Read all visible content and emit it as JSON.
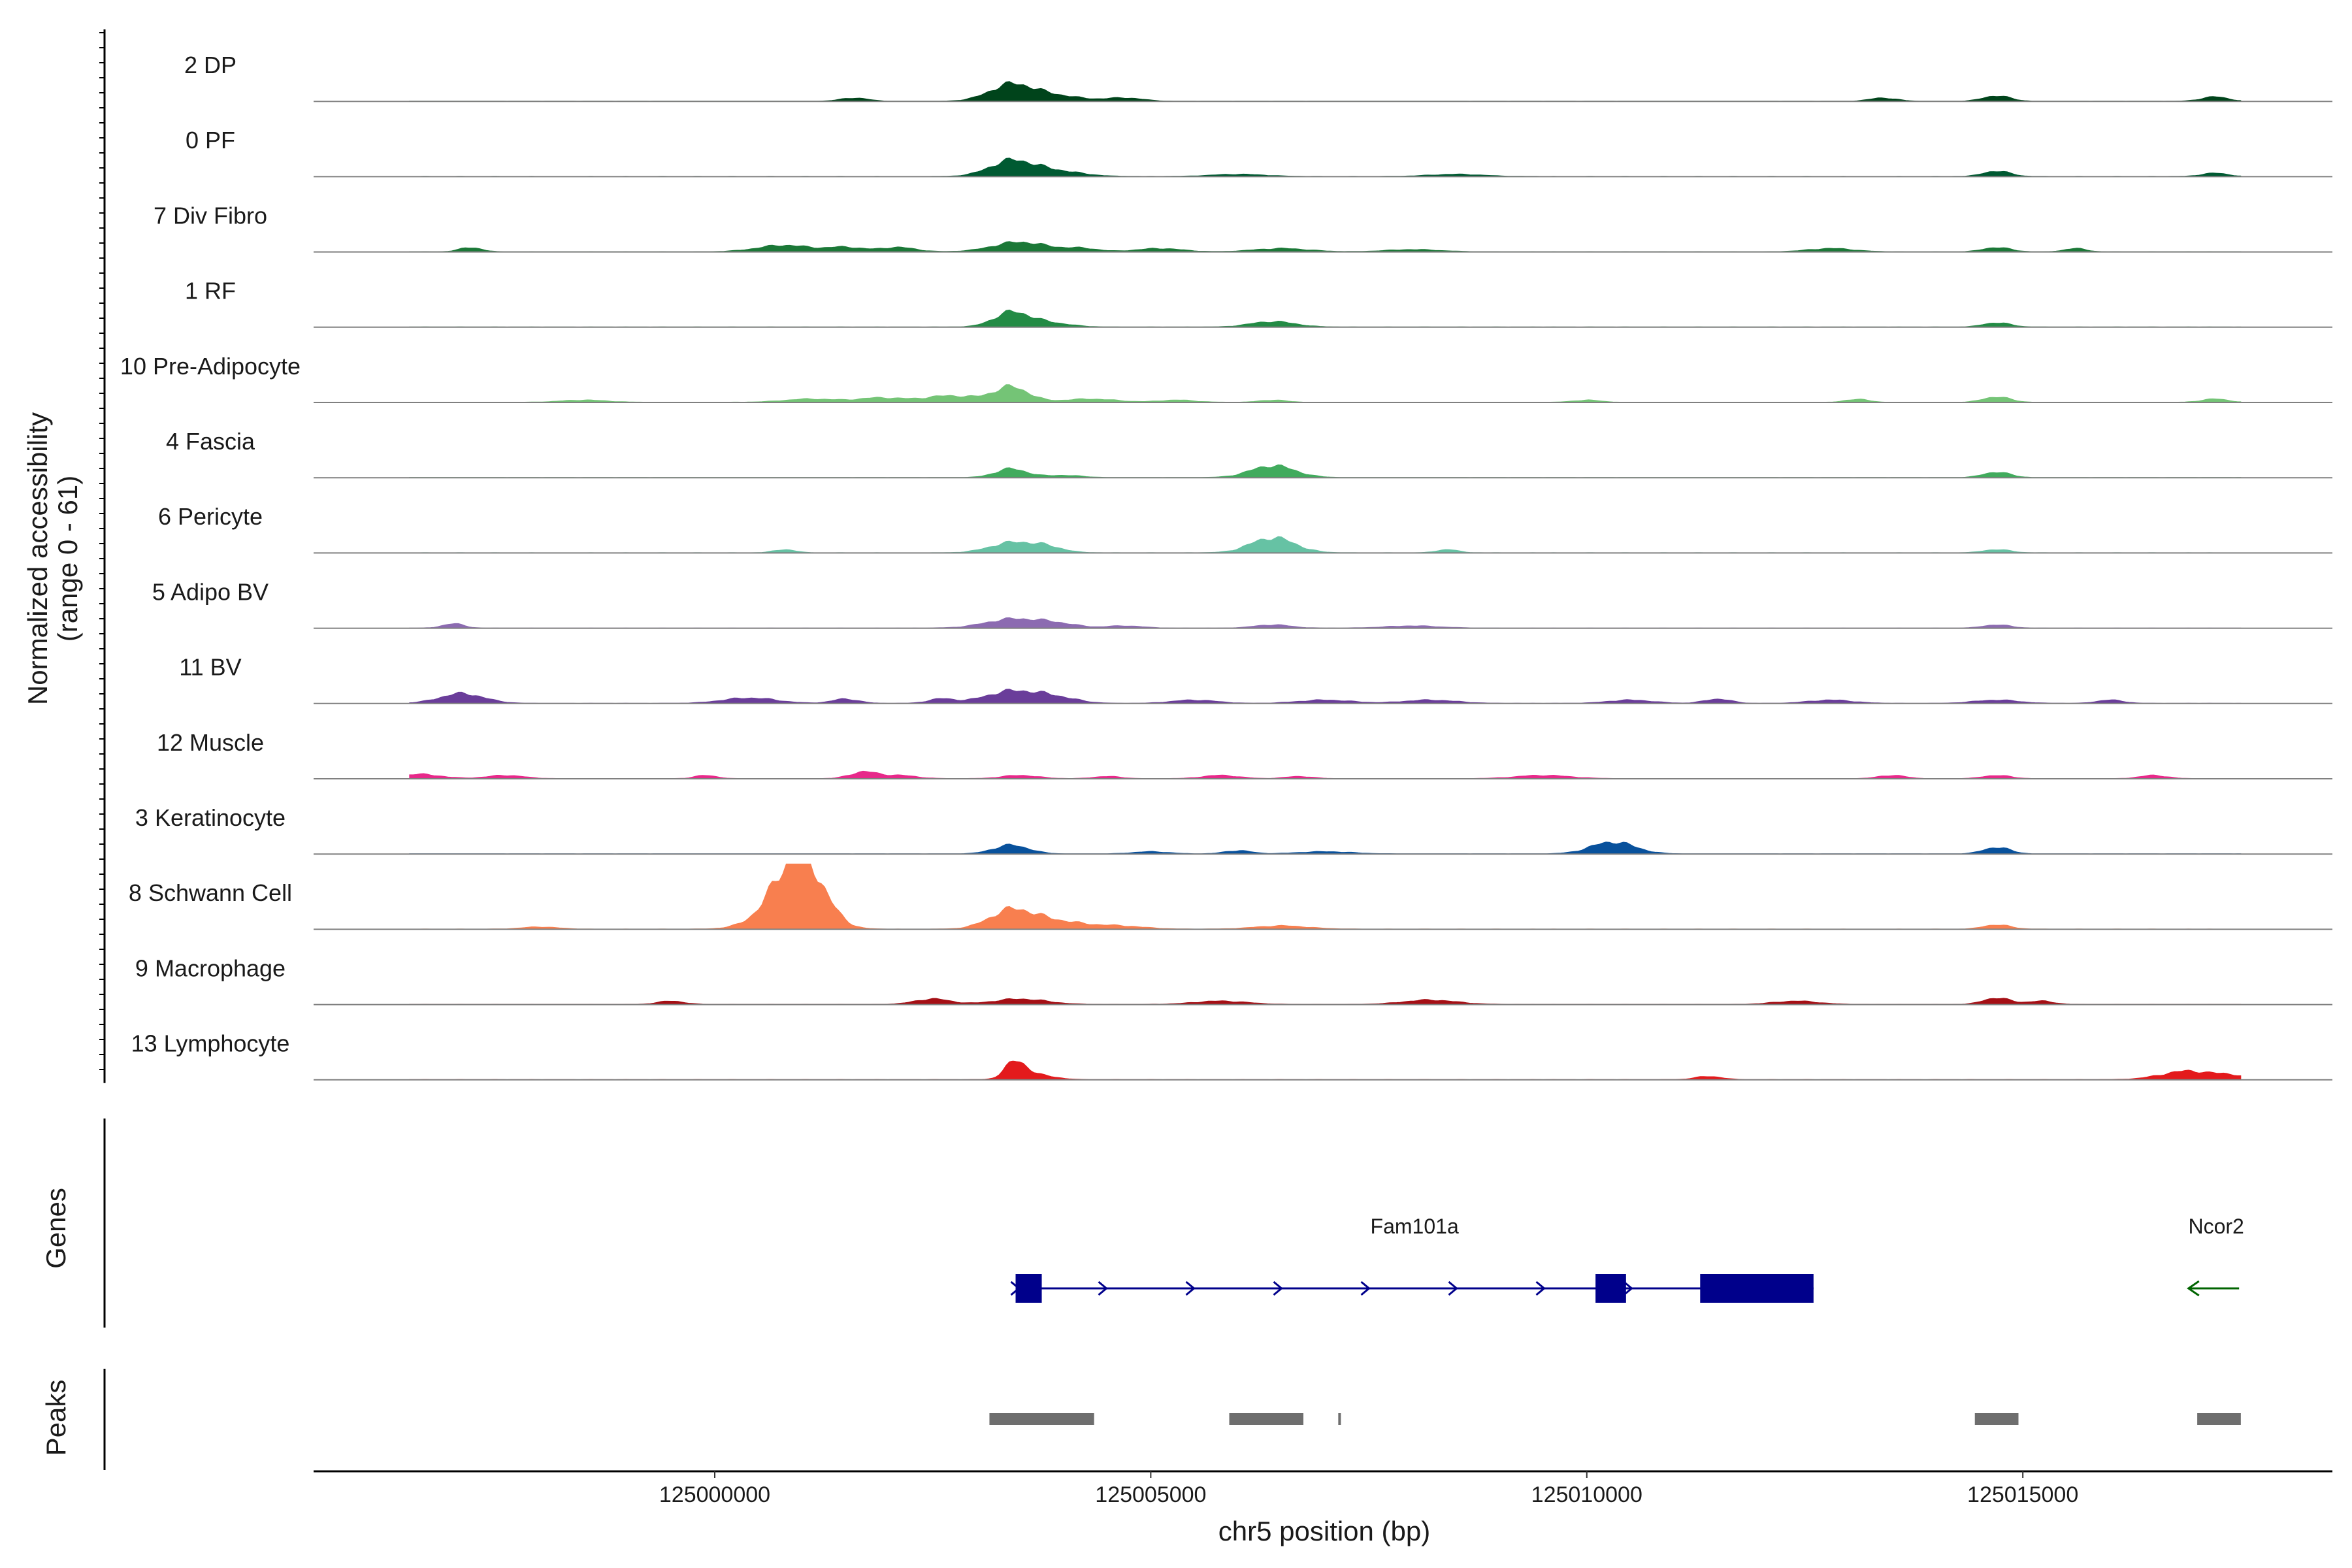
{
  "chart_data": {
    "type": "area",
    "title": "",
    "coverage": {
      "ylabel_line1": "Normalized accessibility",
      "ylabel_line2": "(range 0 - 61)",
      "ylim": [
        0,
        61
      ],
      "tracks": [
        {
          "label": "2 DP",
          "color": "#00441b",
          "peaks": [
            [
              125003400,
              15,
              250
            ],
            [
              125003900,
              5,
              300
            ],
            [
              125004700,
              3,
              200
            ],
            [
              125014700,
              5,
              150
            ],
            [
              125017200,
              4,
              150
            ],
            [
              125013400,
              3,
              150
            ],
            [
              125001600,
              3,
              150
            ]
          ]
        },
        {
          "label": "0 PF",
          "color": "#005a32",
          "peaks": [
            [
              125003400,
              14,
              250
            ],
            [
              125003900,
              5,
              300
            ],
            [
              125014700,
              5,
              150
            ],
            [
              125017200,
              3,
              150
            ],
            [
              125006000,
              2,
              300
            ],
            [
              125008500,
              2,
              300
            ]
          ]
        },
        {
          "label": "7 Div Fibro",
          "color": "#1b7837",
          "peaks": [
            [
              124997200,
              4,
              120
            ],
            [
              125000800,
              6,
              300
            ],
            [
              125001500,
              4,
              200
            ],
            [
              125002100,
              4,
              200
            ],
            [
              125003500,
              9,
              300
            ],
            [
              125004200,
              3,
              200
            ],
            [
              125005100,
              3,
              250
            ],
            [
              125006500,
              3,
              300
            ],
            [
              125008000,
              2,
              300
            ],
            [
              125012800,
              3,
              250
            ],
            [
              125014700,
              4,
              150
            ],
            [
              125015600,
              3,
              120
            ]
          ]
        },
        {
          "label": "1 RF",
          "color": "#238b45",
          "peaks": [
            [
              125003400,
              13,
              200
            ],
            [
              125003800,
              4,
              250
            ],
            [
              125006400,
              5,
              250
            ],
            [
              125014700,
              4,
              150
            ]
          ]
        },
        {
          "label": "10 Pre-Adipocyte",
          "color": "#74c476",
          "peaks": [
            [
              125003400,
              14,
              200
            ],
            [
              124998500,
              2,
              250
            ],
            [
              125001100,
              3,
              300
            ],
            [
              125001900,
              4,
              250
            ],
            [
              125002700,
              6,
              300
            ],
            [
              125004300,
              3,
              300
            ],
            [
              125005300,
              2,
              200
            ],
            [
              125006400,
              2,
              150
            ],
            [
              125010000,
              2,
              150
            ],
            [
              125013100,
              3,
              120
            ],
            [
              125014700,
              5,
              150
            ],
            [
              125017200,
              3,
              150
            ]
          ]
        },
        {
          "label": "4 Fascia",
          "color": "#41ab5d",
          "peaks": [
            [
              125003400,
              8,
              180
            ],
            [
              125004000,
              2,
              200
            ],
            [
              125006400,
              11,
              250
            ],
            [
              125014700,
              5,
              150
            ]
          ]
        },
        {
          "label": "6 Pericyte",
          "color": "#66c2a4",
          "peaks": [
            [
              125003400,
              9,
              250
            ],
            [
              125003800,
              5,
              200
            ],
            [
              125006400,
              14,
              250
            ],
            [
              125000800,
              3,
              120
            ],
            [
              125008400,
              3,
              120
            ],
            [
              125014700,
              3,
              150
            ]
          ]
        },
        {
          "label": "5 Adipo BV",
          "color": "#8c6bb1",
          "peaks": [
            [
              124997000,
              4,
              120
            ],
            [
              125003400,
              8,
              300
            ],
            [
              125003900,
              4,
              250
            ],
            [
              125004700,
              2,
              200
            ],
            [
              125006400,
              3,
              200
            ],
            [
              125008000,
              2,
              300
            ],
            [
              125014700,
              3,
              150
            ]
          ]
        },
        {
          "label": "11 BV",
          "color": "#6a3d9a",
          "peaks": [
            [
              124997100,
              9,
              250
            ],
            [
              125000400,
              5,
              300
            ],
            [
              125003400,
              11,
              300
            ],
            [
              125003900,
              5,
              250
            ],
            [
              125001500,
              4,
              150
            ],
            [
              125002600,
              4,
              150
            ],
            [
              125005500,
              3,
              250
            ],
            [
              125007000,
              3,
              300
            ],
            [
              125008200,
              3,
              300
            ],
            [
              125010500,
              3,
              250
            ],
            [
              125011500,
              4,
              150
            ],
            [
              125012800,
              3,
              250
            ],
            [
              125014700,
              3,
              250
            ],
            [
              125016000,
              3,
              150
            ]
          ]
        },
        {
          "label": "12 Muscle",
          "color": "#e7298a",
          "peaks": [
            [
              124996600,
              4,
              250
            ],
            [
              124997600,
              3,
              200
            ],
            [
              124999900,
              3,
              120
            ],
            [
              125001700,
              6,
              150
            ],
            [
              125002100,
              3,
              200
            ],
            [
              125003500,
              3,
              200
            ],
            [
              125004500,
              2,
              150
            ],
            [
              125005800,
              3,
              200
            ],
            [
              125006700,
              2,
              150
            ],
            [
              125009500,
              3,
              300
            ],
            [
              125013500,
              3,
              150
            ],
            [
              125014700,
              3,
              150
            ],
            [
              125016500,
              3,
              150
            ]
          ]
        },
        {
          "label": "3 Keratinocyte",
          "color": "#08519c",
          "peaks": [
            [
              125003400,
              8,
              200
            ],
            [
              125010300,
              11,
              250
            ],
            [
              125014700,
              6,
              150
            ],
            [
              125005000,
              2,
              200
            ],
            [
              125007000,
              2,
              300
            ],
            [
              125006000,
              3,
              150
            ]
          ]
        },
        {
          "label": "8 Schwann Cell",
          "color": "#f87f4f",
          "peaks": [
            [
              125001000,
              55,
              250
            ],
            [
              125000800,
              20,
              300
            ],
            [
              125003400,
              17,
              250
            ],
            [
              125003900,
              7,
              300
            ],
            [
              125004600,
              3,
              300
            ],
            [
              125006500,
              3,
              300
            ],
            [
              125014700,
              4,
              150
            ],
            [
              124998000,
              2,
              200
            ]
          ]
        },
        {
          "label": "9 Macrophage",
          "color": "#a50f15",
          "peaks": [
            [
              124999500,
              3,
              150
            ],
            [
              125002500,
              5,
              200
            ],
            [
              125003500,
              5,
              300
            ],
            [
              125005800,
              3,
              300
            ],
            [
              125008200,
              4,
              300
            ],
            [
              125012400,
              3,
              250
            ],
            [
              125014700,
              6,
              150
            ],
            [
              125015200,
              3,
              150
            ]
          ]
        },
        {
          "label": "13 Lymphocyte",
          "color": "#e31a1c",
          "peaks": [
            [
              125003450,
              16,
              120
            ],
            [
              125003700,
              4,
              200
            ],
            [
              125011400,
              3,
              150
            ],
            [
              125016900,
              8,
              300
            ],
            [
              125017400,
              3,
              150
            ]
          ]
        }
      ]
    },
    "genes": {
      "ylabel": "Genes",
      "items": [
        {
          "name": "Fam101a",
          "color": "#00008b",
          "strand": "+",
          "start": 125003450,
          "end": 125012600,
          "exons": [
            [
              125003450,
              125003750
            ],
            [
              125010100,
              125010450
            ],
            [
              125011300,
              125012600
            ]
          ]
        },
        {
          "name": "Ncor2",
          "color": "#006400",
          "strand": "-",
          "start": 125016900,
          "end": 125017480,
          "exons": []
        }
      ]
    },
    "peaks_track": {
      "ylabel": "Peaks",
      "color": "#6e6e6e",
      "regions": [
        [
          125003150,
          125004350
        ],
        [
          125005900,
          125006750
        ],
        [
          125007150,
          125007180
        ],
        [
          125014450,
          125014950
        ],
        [
          125017000,
          125017500
        ]
      ]
    },
    "xaxis": {
      "label": "chr5 position (bp)",
      "range": [
        124995400,
        125018550
      ],
      "ticks": [
        125000000,
        125005000,
        125010000,
        125015000
      ],
      "tick_labels": [
        "125000000",
        "125005000",
        "125010000",
        "125015000"
      ]
    }
  }
}
